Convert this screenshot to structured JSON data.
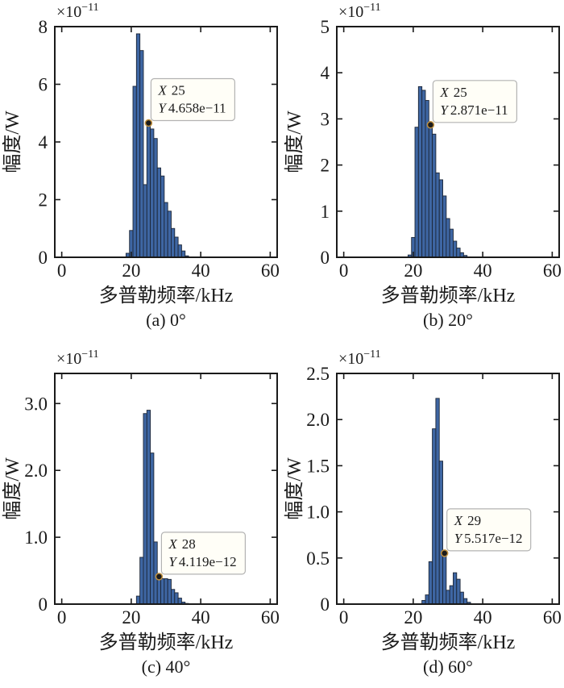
{
  "figure": {
    "title": "",
    "xlabel": "多普勒频率/kHz",
    "ylabel": "幅度/W",
    "scale_label": {
      "mantissa": "×10",
      "exponent": "−11"
    },
    "x_ticks": {
      "values": [
        0,
        20,
        40,
        60
      ],
      "labels": [
        "0",
        "20",
        "40",
        "60"
      ]
    },
    "xlim": [
      -2,
      62
    ],
    "grid": "off",
    "colors": {
      "bar_fill": "#3e66a3",
      "bar_edge": "#1c2637",
      "axis": "#1a1a1a",
      "text": "#1a1a1a",
      "annotation_bg": "#fffef7",
      "annotation_border": "#b3b3b3",
      "marker_fill": "#1c1c1c",
      "marker_ring": "#c0903e"
    }
  },
  "chart_data": [
    {
      "type": "bar",
      "caption": "(a) 0°",
      "xlabel": "多普勒频率/kHz",
      "ylabel": "幅度/W",
      "unit_scale": "1e-11",
      "ylim": [
        0,
        8
      ],
      "y_ticks": {
        "values": [
          0,
          2,
          4,
          6,
          8
        ],
        "labels": [
          "0",
          "2",
          "4",
          "6",
          "8"
        ]
      },
      "x_start": 19,
      "values": [
        0.14,
        0.93,
        5.93,
        7.75,
        7.17,
        2.52,
        4.658,
        4.45,
        4.12,
        3.1,
        2.82,
        1.9,
        1.6,
        1.0,
        0.7,
        0.43,
        0.22,
        0.05
      ],
      "datatip": {
        "x": 25,
        "y": 4.658,
        "label_x": "X",
        "value_x": "25",
        "label_y": "Y",
        "value_y": "4.658e−11"
      }
    },
    {
      "type": "bar",
      "caption": "(b) 20°",
      "xlabel": "多普勒频率/kHz",
      "ylabel": "幅度/W",
      "unit_scale": "1e-11",
      "ylim": [
        0,
        5
      ],
      "y_ticks": {
        "values": [
          0,
          1,
          2,
          3,
          4,
          5
        ],
        "labels": [
          "0",
          "1",
          "2",
          "3",
          "4",
          "5"
        ]
      },
      "x_start": 19,
      "values": [
        0.05,
        0.43,
        2.82,
        3.7,
        3.62,
        3.4,
        2.871,
        2.67,
        1.83,
        1.68,
        1.33,
        0.84,
        0.61,
        0.35,
        0.2,
        0.1,
        0.04,
        0.01
      ],
      "datatip": {
        "x": 25,
        "y": 2.871,
        "label_x": "X",
        "value_x": "25",
        "label_y": "Y",
        "value_y": "2.871e−11"
      }
    },
    {
      "type": "bar",
      "caption": "(c) 40°",
      "xlabel": "多普勒频率/kHz",
      "ylabel": "幅度/W",
      "unit_scale": "1e-11",
      "ylim": [
        0,
        3.45
      ],
      "y_ticks": {
        "values": [
          0,
          1,
          2,
          3
        ],
        "labels": [
          "0",
          "1.0",
          "2.0",
          "3.0"
        ]
      },
      "x_start": 22,
      "values": [
        0.12,
        0.7,
        2.85,
        2.9,
        2.26,
        0.93,
        0.412,
        0.38,
        0.38,
        0.37,
        0.22,
        0.17,
        0.09,
        0.03,
        0.01
      ],
      "datatip": {
        "x": 28,
        "y": 0.4119,
        "label_x": "X",
        "value_x": "28",
        "label_y": "Y",
        "value_y": "4.119e−12"
      }
    },
    {
      "type": "bar",
      "caption": "(d) 60°",
      "xlabel": "多普勒频率/kHz",
      "ylabel": "幅度/W",
      "unit_scale": "1e-11",
      "ylim": [
        0,
        2.5
      ],
      "y_ticks": {
        "values": [
          0,
          0.5,
          1.0,
          1.5,
          2.0,
          2.5
        ],
        "labels": [
          "0",
          "0.5",
          "1.0",
          "1.5",
          "2.0",
          "2.5"
        ]
      },
      "x_start": 23,
      "values": [
        0.04,
        0.1,
        0.46,
        1.9,
        2.23,
        1.55,
        0.552,
        0.15,
        0.2,
        0.34,
        0.27,
        0.13,
        0.06,
        0.02
      ],
      "datatip": {
        "x": 29,
        "y": 0.5517,
        "label_x": "X",
        "value_x": "29",
        "label_y": "Y",
        "value_y": "5.517e−12"
      }
    }
  ]
}
